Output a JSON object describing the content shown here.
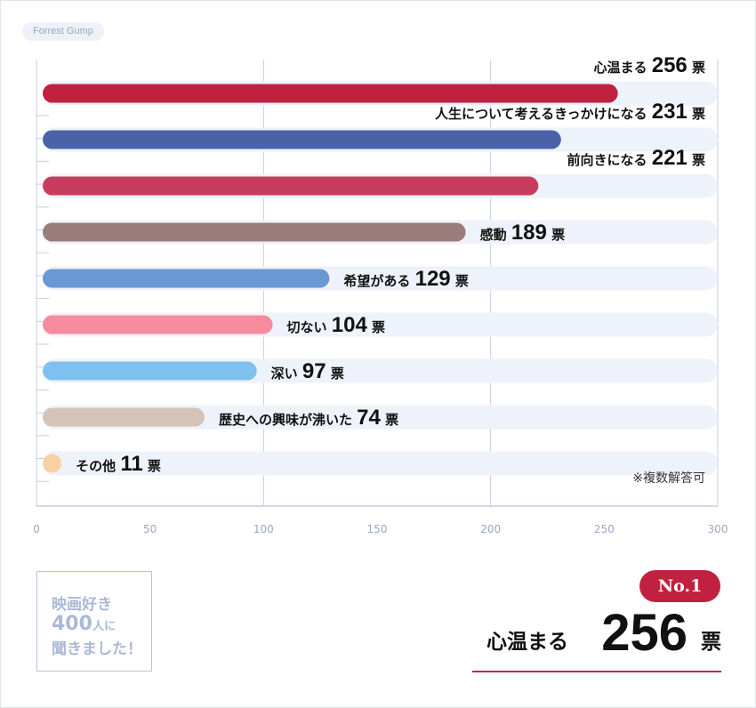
{
  "tag": "Forrest Gump",
  "note": "※複数解答可",
  "colors": {
    "accent": "#c0213f",
    "track": "#eef2fa",
    "grid": "#c4cee0",
    "tick_label": "#9aa8c2"
  },
  "chart_data": {
    "type": "bar",
    "orientation": "horizontal",
    "categories": [
      "心温まる",
      "人生について考えるきっかけになる",
      "前向きになる",
      "感動",
      "希望がある",
      "切ない",
      "深い",
      "歴史への興味が沸いた",
      "その他"
    ],
    "values": [
      256,
      231,
      221,
      189,
      129,
      104,
      97,
      74,
      11
    ],
    "unit": "票",
    "colors": [
      "#c0213f",
      "#4a62a8",
      "#c73d5e",
      "#9c7d7d",
      "#6a98d2",
      "#f58b9c",
      "#7ec1ee",
      "#d5c3b9",
      "#f7d1a4"
    ],
    "xlim": [
      0,
      300
    ],
    "xticks": [
      0,
      50,
      100,
      150,
      200,
      250,
      300
    ],
    "grid": true
  },
  "stamp": {
    "line1": "映画好き",
    "line2_num": "400",
    "line2_text": "人に",
    "line3": "聞きました！"
  },
  "result": {
    "badge": "No.1",
    "label": "心温まる",
    "value": "256",
    "unit": "票"
  }
}
